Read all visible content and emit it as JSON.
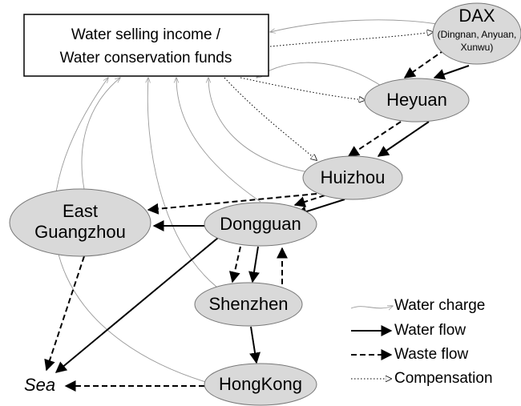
{
  "box": {
    "lines": [
      "Water selling income /",
      "Water conservation funds"
    ]
  },
  "nodes": [
    {
      "label": [
        "DAX"
      ],
      "sublabel": [
        "(Dingnan, Anyuan,",
        "Xunwu)"
      ]
    },
    {
      "label": [
        "Heyuan"
      ]
    },
    {
      "label": [
        "Huizhou"
      ]
    },
    {
      "label": [
        "Dongguan"
      ]
    },
    {
      "label": [
        "East",
        "Guangzhou"
      ]
    },
    {
      "label": [
        "Shenzhen"
      ]
    },
    {
      "label": [
        "HongKong"
      ]
    }
  ],
  "sea": "Sea",
  "legend": [
    "Water charge",
    "Water flow",
    "Waste flow",
    "Compensation"
  ]
}
